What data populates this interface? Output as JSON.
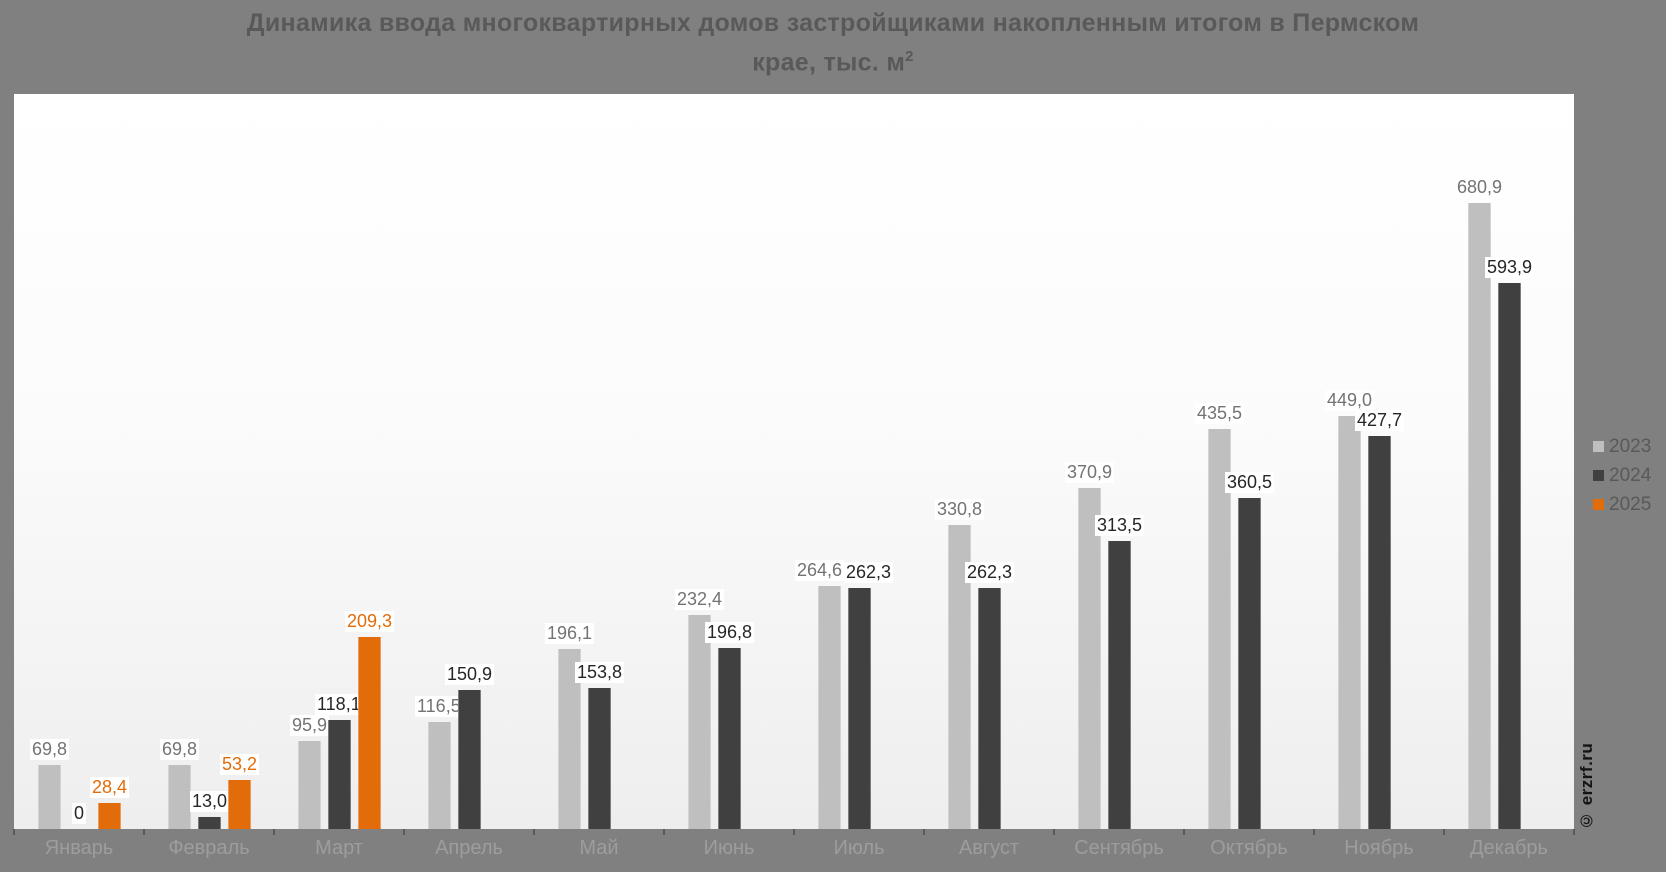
{
  "title": {
    "line1": "Динамика ввода многоквартирных домов застройщиками накопленным итогом в Пермском",
    "line2": "крае, тыс. м",
    "superscript": "2"
  },
  "watermark": "© erzrf.ru",
  "legend": {
    "items": [
      {
        "label": "2023",
        "color": "#bfbfbf"
      },
      {
        "label": "2024",
        "color": "#404040"
      },
      {
        "label": "2025",
        "color": "#e36c0a"
      }
    ]
  },
  "chart_data": {
    "type": "bar",
    "title": "Динамика ввода многоквартирных домов застройщиками накопленным итогом в Пермском крае, тыс. м²",
    "categories": [
      "Январь",
      "Февраль",
      "Март",
      "Апрель",
      "Май",
      "Июнь",
      "Июль",
      "Август",
      "Сентябрь",
      "Октябрь",
      "Ноябрь",
      "Декабрь"
    ],
    "series": [
      {
        "name": "2023",
        "color": "#bfbfbf",
        "label_color": "#737373",
        "values": [
          69.8,
          69.8,
          95.9,
          116.5,
          196.1,
          232.4,
          264.6,
          330.8,
          370.9,
          435.5,
          449.0,
          680.9
        ],
        "labels": [
          "69,8",
          "69,8",
          "95,9",
          "116,5",
          "196,1",
          "232,4",
          "264,6",
          "330,8",
          "370,9",
          "435,5",
          "449,0",
          "680,9"
        ]
      },
      {
        "name": "2024",
        "color": "#404040",
        "label_color": "#262626",
        "values": [
          0,
          13.0,
          118.1,
          150.9,
          153.8,
          196.8,
          262.3,
          262.3,
          313.5,
          360.5,
          427.7,
          593.9
        ],
        "labels": [
          "0",
          "13,0",
          "118,1",
          "150,9",
          "153,8",
          "196,8",
          "262,3",
          "262,3",
          "313,5",
          "360,5",
          "427,7",
          "593,9"
        ]
      },
      {
        "name": "2025",
        "color": "#e36c0a",
        "label_color": "#e36c0a",
        "values": [
          28.4,
          53.2,
          209.3,
          null,
          null,
          null,
          null,
          null,
          null,
          null,
          null,
          null
        ],
        "labels": [
          "28,4",
          "53,2",
          "209,3",
          null,
          null,
          null,
          null,
          null,
          null,
          null,
          null,
          null
        ]
      }
    ],
    "ylim": [
      0,
      800
    ],
    "grid": false,
    "legend_position": "right",
    "background_color": "#808080",
    "plot_background": [
      "#ffffff",
      "#eeeeee"
    ]
  }
}
